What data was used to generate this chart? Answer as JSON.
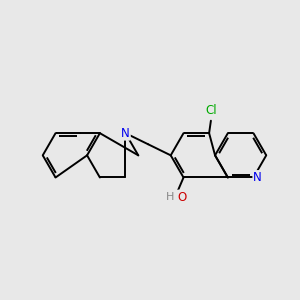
{
  "bg_color": "#e8e8e8",
  "bond_color": "#000000",
  "bond_width": 1.4,
  "atom_colors": {
    "N_quinoline": "#0000ee",
    "N_iso": "#0000ee",
    "O": "#cc0000",
    "H": "#888888",
    "Cl": "#00aa00"
  },
  "font_size": 8.5
}
